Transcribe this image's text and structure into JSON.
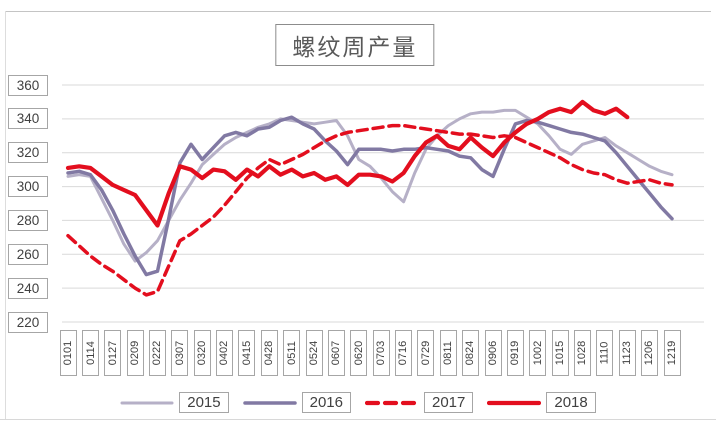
{
  "chart_data": {
    "type": "line",
    "title": "螺纹周产量",
    "grid": "horizontal",
    "legend_position": "bottom",
    "ylim": [
      220,
      360
    ],
    "y_ticks": [
      "360",
      "340",
      "320",
      "300",
      "280",
      "260",
      "240",
      "220"
    ],
    "categories": [
      "0101",
      "0114",
      "0127",
      "0209",
      "0222",
      "0307",
      "0320",
      "0402",
      "0415",
      "0428",
      "0511",
      "0524",
      "0607",
      "0620",
      "0703",
      "0716",
      "0729",
      "0811",
      "0824",
      "0906",
      "0919",
      "1002",
      "1015",
      "1028",
      "1110",
      "1123",
      "1206",
      "1219"
    ],
    "points_per_category": 2,
    "note_colors": {
      "grid": "#d9d9d9",
      "axis_text": "#404040",
      "label_box_border": "#a6a6a6"
    },
    "series": [
      {
        "name": "2015",
        "color": "#b6b0c7",
        "style": "solid",
        "width": 3,
        "values": [
          306,
          307,
          306,
          293,
          280,
          266,
          256,
          261,
          268,
          280,
          292,
          302,
          313,
          319,
          325,
          329,
          332,
          335,
          337,
          340,
          339,
          338,
          337,
          338,
          339,
          330,
          316,
          312,
          305,
          297,
          291,
          308,
          322,
          330,
          336,
          340,
          343,
          344,
          344,
          345,
          345,
          341,
          337,
          330,
          322,
          319,
          325,
          327,
          329,
          324,
          320,
          316,
          312,
          309,
          307
        ]
      },
      {
        "name": "2016",
        "color": "#8179a3",
        "style": "solid",
        "width": 3.5,
        "values": [
          308,
          309,
          307,
          298,
          286,
          272,
          259,
          248,
          250,
          281,
          314,
          325,
          316,
          323,
          330,
          332,
          330,
          334,
          335,
          339,
          341,
          337,
          334,
          327,
          321,
          313,
          322,
          322,
          322,
          321,
          322,
          322,
          323,
          322,
          321,
          318,
          317,
          310,
          306,
          322,
          337,
          339,
          338,
          336,
          334,
          332,
          331,
          329,
          327,
          320,
          312,
          304,
          296,
          288,
          281
        ]
      },
      {
        "name": "2017",
        "color": "#e30e1e",
        "style": "dashed",
        "width": 3.5,
        "values": [
          271,
          265,
          259,
          254,
          250,
          245,
          240,
          236,
          238,
          253,
          268,
          272,
          277,
          282,
          289,
          297,
          305,
          311,
          316,
          313,
          316,
          319,
          323,
          327,
          330,
          332,
          333,
          334,
          335,
          336,
          336,
          335,
          334,
          333,
          332,
          331,
          331,
          330,
          329,
          330,
          329,
          326,
          323,
          320,
          317,
          313,
          310,
          308,
          307,
          304,
          302,
          303,
          304,
          302,
          301
        ]
      },
      {
        "name": "2018",
        "color": "#e30e1e",
        "style": "solid",
        "width": 4.2,
        "values": [
          311,
          312,
          311,
          306,
          301,
          298,
          295,
          286,
          277,
          296,
          312,
          310,
          305,
          310,
          309,
          304,
          310,
          306,
          312,
          307,
          310,
          306,
          308,
          304,
          306,
          301,
          307,
          307,
          306,
          303,
          308,
          318,
          326,
          330,
          324,
          322,
          329,
          323,
          318,
          326,
          332,
          337,
          340,
          344,
          346,
          344,
          350,
          345,
          343,
          346,
          341
        ]
      }
    ]
  }
}
